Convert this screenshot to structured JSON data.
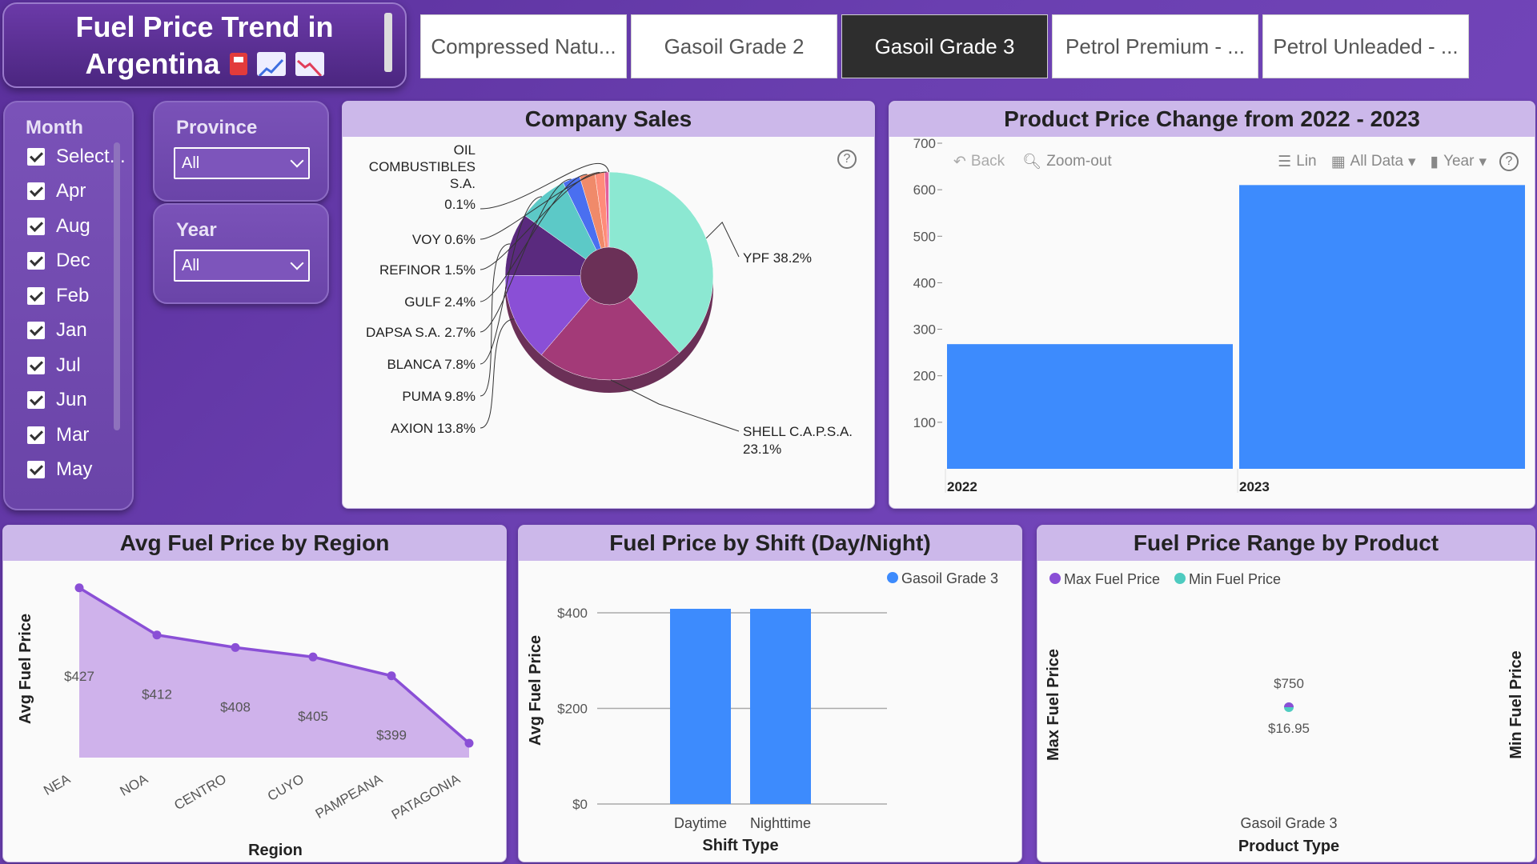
{
  "title": {
    "line1": "Fuel Price Trend in",
    "line2": "Argentina"
  },
  "tabs": [
    "Compressed Natu...",
    "Gasoil Grade 2",
    "Gasoil Grade 3",
    "Petrol Premium - ...",
    "Petrol Unleaded - ..."
  ],
  "active_tab": "Gasoil Grade 3",
  "month_slicer": {
    "title": "Month",
    "items": [
      "Select...",
      "Apr",
      "Aug",
      "Dec",
      "Feb",
      "Jan",
      "Jul",
      "Jun",
      "Mar",
      "May"
    ]
  },
  "province_slicer": {
    "title": "Province",
    "value": "All"
  },
  "year_slicer": {
    "title": "Year",
    "value": "All"
  },
  "company_sales": {
    "title": "Company Sales",
    "help": "?"
  },
  "price_change": {
    "title": "Product Price Change from 2022 - 2023",
    "toolbar": {
      "back": "Back",
      "zoom_out": "Zoom-out",
      "lin": "Lin",
      "all_data": "All Data",
      "year": "Year",
      "help": "?"
    }
  },
  "avg_region": {
    "title": "Avg Fuel Price by Region",
    "xlabel": "Region",
    "ylabel": "Avg Fuel Price"
  },
  "shift": {
    "title": "Fuel Price by Shift (Day/Night)",
    "xlabel": "Shift Type",
    "ylabel": "Avg Fuel Price",
    "legend": "Gasoil Grade 3"
  },
  "range": {
    "title": "Fuel Price Range by Product",
    "legend_max": "Max Fuel Price",
    "legend_min": "Min Fuel Price",
    "ylabel_left": "Max Fuel Price",
    "ylabel_right": "Min Fuel Price",
    "xlabel": "Product Type"
  },
  "colors": {
    "accent": "#3d8bfd",
    "purple": "#8a4fd6",
    "teal": "#4ecbc0"
  },
  "chart_data": [
    {
      "id": "company_sales",
      "type": "pie",
      "donut": true,
      "categories": [
        "YPF",
        "SHELL C.A.P.S.A.",
        "AXION",
        "PUMA",
        "BLANCA",
        "DAPSA S.A.",
        "GULF",
        "REFINOR",
        "VOY",
        "OIL COMBUSTIBLES S.A."
      ],
      "labels": [
        "YPF 38.2%",
        "SHELL C.A.P.S.A. 23.1%",
        "AXION 13.8%",
        "PUMA 9.8%",
        "BLANCA 7.8%",
        "DAPSA S.A. 2.7%",
        "GULF 2.4%",
        "REFINOR 1.5%",
        "VOY 0.6%",
        "OIL COMBUSTIBLES S.A. 0.1%"
      ],
      "values": [
        38.2,
        23.1,
        13.8,
        9.8,
        7.8,
        2.7,
        2.4,
        1.5,
        0.6,
        0.1
      ],
      "colors": [
        "#8ce8d2",
        "#a33a78",
        "#8a4fd6",
        "#5a2a7e",
        "#5cc9c7",
        "#4a6ff0",
        "#f08a6a",
        "#ff8c7a",
        "#e35f9a",
        "#c060c0"
      ]
    },
    {
      "id": "price_change",
      "type": "bar",
      "categories": [
        "2022",
        "2023"
      ],
      "values": [
        268,
        610
      ],
      "ylim": [
        0,
        700
      ],
      "yticks": [
        100,
        200,
        300,
        400,
        500,
        600,
        700
      ]
    },
    {
      "id": "avg_region",
      "type": "area",
      "categories": [
        "NEA",
        "NOA",
        "CENTRO",
        "CUYO",
        "PAMPEANA",
        "PATAGONIA"
      ],
      "values": [
        427,
        412,
        408,
        405,
        399,
        381
      ],
      "labels": [
        "$427",
        "$412",
        "$408",
        "$405",
        "$399",
        ""
      ],
      "xlabel": "Region",
      "ylabel": "Avg Fuel Price"
    },
    {
      "id": "shift",
      "type": "bar",
      "categories": [
        "Daytime",
        "Nighttime"
      ],
      "series": [
        {
          "name": "Gasoil Grade 3",
          "values": [
            405,
            405
          ]
        }
      ],
      "ylim": [
        0,
        440
      ],
      "yticks": [
        0,
        200,
        400
      ],
      "ytick_labels": [
        "$0",
        "$200",
        "$400"
      ],
      "xlabel": "Shift Type",
      "ylabel": "Avg Fuel Price"
    },
    {
      "id": "range",
      "type": "scatter",
      "categories": [
        "Gasoil Grade 3"
      ],
      "series": [
        {
          "name": "Max Fuel Price",
          "values": [
            750
          ],
          "label": "$750"
        },
        {
          "name": "Min Fuel Price",
          "values": [
            16.95
          ],
          "label": "$16.95"
        }
      ],
      "xlabel": "Product Type"
    }
  ]
}
